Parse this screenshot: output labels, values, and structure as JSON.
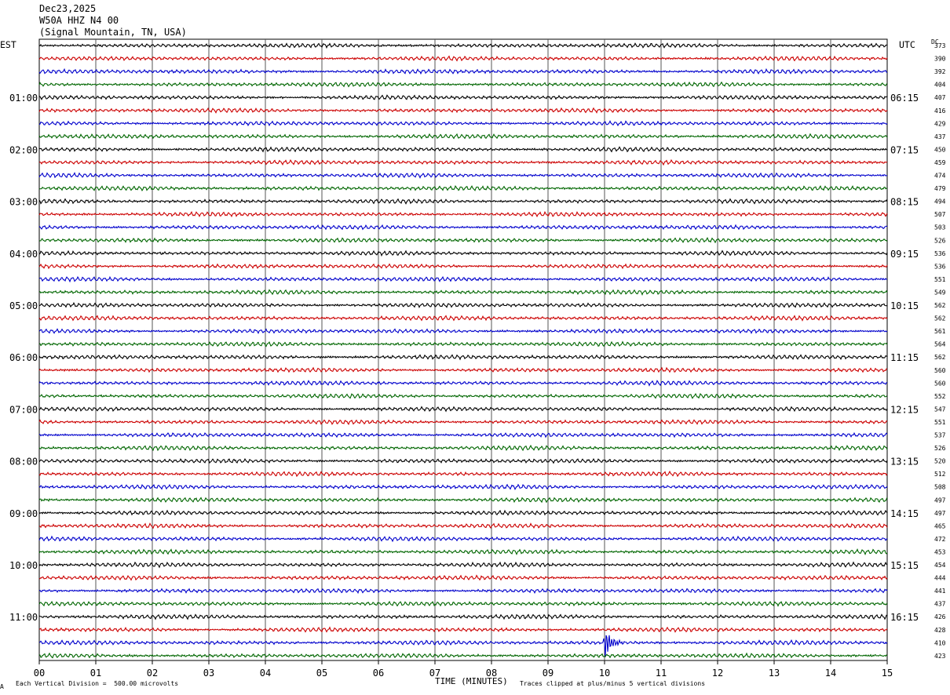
{
  "header": {
    "date": "Dec23,2025",
    "station": "W50A HHZ N4 00",
    "location": "(Signal Mountain, TN, USA)"
  },
  "left_timezone": "EST",
  "right_timezone": "UTC",
  "dc_label": "DC",
  "footer": {
    "scale_note": "Each Vertical Division =  500.00 microvolts",
    "xlabel": "TIME (MINUTES)",
    "clip_note": "Traces clipped at plus/minus 5 vertical divisions",
    "corner_mark": "A"
  },
  "chart_data": {
    "type": "line",
    "xlabel": "TIME (MINUTES)",
    "xlim": [
      0,
      15
    ],
    "x_ticks": [
      "00",
      "01",
      "02",
      "03",
      "04",
      "05",
      "06",
      "07",
      "08",
      "09",
      "10",
      "11",
      "12",
      "13",
      "14",
      "15"
    ],
    "left_hour_labels": [
      "01:00",
      "02:00",
      "03:00",
      "04:00",
      "05:00",
      "06:00",
      "07:00",
      "08:00",
      "09:00",
      "10:00",
      "11:00"
    ],
    "right_hour_labels": [
      "06:15",
      "07:15",
      "08:15",
      "09:15",
      "10:15",
      "11:15",
      "12:15",
      "13:15",
      "14:15",
      "15:15",
      "16:15"
    ],
    "trace_count": 48,
    "traces_per_hour": 4,
    "first_labeled_trace": 4,
    "trace_colors": [
      "#000000",
      "#cc0000",
      "#0000cc",
      "#006600"
    ],
    "dc_offsets": [
      373,
      390,
      392,
      404,
      407,
      416,
      429,
      437,
      450,
      459,
      474,
      479,
      494,
      507,
      503,
      526,
      536,
      536,
      551,
      549,
      562,
      562,
      561,
      564,
      562,
      560,
      560,
      552,
      547,
      551,
      537,
      526,
      520,
      512,
      508,
      497,
      497,
      465,
      472,
      453,
      454,
      444,
      441,
      437,
      426,
      428,
      410,
      423
    ],
    "event": {
      "trace": 46,
      "minute": 10.0,
      "description_units": "clipped burst"
    }
  }
}
